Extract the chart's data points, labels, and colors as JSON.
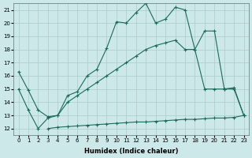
{
  "xlabel": "Humidex (Indice chaleur)",
  "bg_color": "#cce8e8",
  "grid_color": "#aacccc",
  "line_color": "#1a6b5a",
  "xlim": [
    -0.5,
    23.5
  ],
  "ylim": [
    11.5,
    21.5
  ],
  "xticks": [
    0,
    1,
    2,
    3,
    4,
    5,
    6,
    7,
    8,
    9,
    10,
    11,
    12,
    13,
    14,
    15,
    16,
    17,
    18,
    19,
    20,
    21,
    22,
    23
  ],
  "yticks": [
    12,
    13,
    14,
    15,
    16,
    17,
    18,
    19,
    20,
    21
  ],
  "series1_x": [
    0,
    1,
    2,
    3,
    4,
    5,
    6,
    7,
    8,
    9,
    10,
    11,
    12,
    13,
    14,
    15,
    16,
    17,
    18,
    19,
    20,
    21,
    22,
    23
  ],
  "series1_y": [
    16.3,
    14.9,
    13.4,
    12.9,
    13.0,
    14.5,
    14.8,
    16.0,
    16.5,
    18.1,
    20.1,
    20.0,
    20.8,
    21.5,
    20.0,
    20.3,
    21.2,
    21.0,
    18.0,
    19.4,
    19.4,
    15.0,
    15.1,
    13.0
  ],
  "series2_x": [
    0,
    1,
    2,
    3,
    4,
    5,
    6,
    7,
    8,
    9,
    10,
    11,
    12,
    13,
    14,
    15,
    16,
    17,
    18,
    19,
    20,
    21,
    22,
    23
  ],
  "series2_y": [
    15.0,
    13.4,
    12.0,
    12.8,
    13.0,
    14.0,
    14.5,
    15.0,
    15.5,
    16.0,
    16.5,
    17.0,
    17.5,
    18.0,
    18.3,
    18.5,
    18.7,
    18.0,
    18.0,
    15.0,
    15.0,
    15.0,
    15.0,
    13.0
  ],
  "series3_x": [
    3,
    4,
    5,
    6,
    7,
    8,
    9,
    10,
    11,
    12,
    13,
    14,
    15,
    16,
    17,
    18,
    19,
    20,
    21,
    22,
    23
  ],
  "series3_y": [
    12.0,
    12.1,
    12.15,
    12.2,
    12.25,
    12.3,
    12.35,
    12.4,
    12.45,
    12.5,
    12.5,
    12.55,
    12.6,
    12.65,
    12.7,
    12.7,
    12.75,
    12.8,
    12.8,
    12.85,
    13.0
  ]
}
